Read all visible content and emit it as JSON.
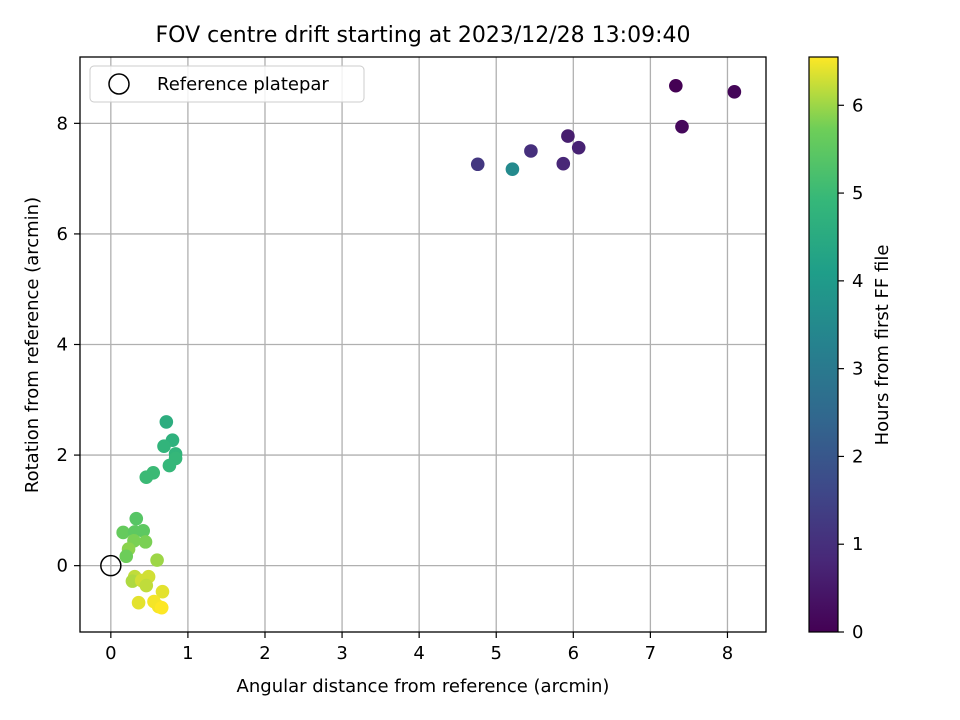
{
  "chart_data": {
    "type": "scatter",
    "title": "FOV centre drift starting at 2023/12/28 13:09:40",
    "xlabel": "Angular distance from reference (arcmin)",
    "ylabel": "Rotation from reference (arcmin)",
    "xlim": [
      -0.4,
      8.5
    ],
    "ylim": [
      -1.2,
      9.2
    ],
    "xticks": [
      0,
      1,
      2,
      3,
      4,
      5,
      6,
      7,
      8
    ],
    "yticks": [
      0,
      2,
      4,
      6,
      8
    ],
    "grid": true,
    "legend": {
      "placement": "top-left",
      "entries": [
        "Reference platepar"
      ]
    },
    "reference_point": {
      "x": 0,
      "y": 0,
      "name": "Reference platepar"
    },
    "colorbar": {
      "label": "Hours from first FF file",
      "colormap": "viridis",
      "range": [
        0,
        6.55
      ],
      "ticks": [
        0,
        1,
        2,
        3,
        4,
        5,
        6
      ]
    },
    "points": [
      {
        "x": 7.33,
        "y": 8.68,
        "c": 0.0
      },
      {
        "x": 8.09,
        "y": 8.57,
        "c": 0.1
      },
      {
        "x": 7.41,
        "y": 7.94,
        "c": 0.15
      },
      {
        "x": 5.93,
        "y": 7.77,
        "c": 0.6
      },
      {
        "x": 6.07,
        "y": 7.56,
        "c": 0.7
      },
      {
        "x": 5.45,
        "y": 7.5,
        "c": 1.0
      },
      {
        "x": 5.87,
        "y": 7.27,
        "c": 0.8
      },
      {
        "x": 4.76,
        "y": 7.26,
        "c": 1.2
      },
      {
        "x": 5.21,
        "y": 7.17,
        "c": 3.5
      },
      {
        "x": 0.72,
        "y": 2.6,
        "c": 4.6
      },
      {
        "x": 0.8,
        "y": 2.27,
        "c": 4.7
      },
      {
        "x": 0.69,
        "y": 2.16,
        "c": 4.8
      },
      {
        "x": 0.84,
        "y": 2.02,
        "c": 4.8
      },
      {
        "x": 0.84,
        "y": 1.94,
        "c": 4.9
      },
      {
        "x": 0.76,
        "y": 1.81,
        "c": 4.9
      },
      {
        "x": 0.55,
        "y": 1.68,
        "c": 5.0
      },
      {
        "x": 0.46,
        "y": 1.6,
        "c": 5.0
      },
      {
        "x": 0.33,
        "y": 0.85,
        "c": 5.4
      },
      {
        "x": 0.16,
        "y": 0.6,
        "c": 5.6
      },
      {
        "x": 0.31,
        "y": 0.61,
        "c": 5.5
      },
      {
        "x": 0.42,
        "y": 0.63,
        "c": 5.5
      },
      {
        "x": 0.45,
        "y": 0.43,
        "c": 5.8
      },
      {
        "x": 0.3,
        "y": 0.45,
        "c": 5.8
      },
      {
        "x": 0.23,
        "y": 0.3,
        "c": 5.9
      },
      {
        "x": 0.2,
        "y": 0.17,
        "c": 5.7
      },
      {
        "x": 0.6,
        "y": 0.1,
        "c": 6.0
      },
      {
        "x": 0.31,
        "y": -0.2,
        "c": 6.2
      },
      {
        "x": 0.49,
        "y": -0.2,
        "c": 6.3
      },
      {
        "x": 0.28,
        "y": -0.28,
        "c": 6.1
      },
      {
        "x": 0.4,
        "y": -0.27,
        "c": 6.3
      },
      {
        "x": 0.46,
        "y": -0.36,
        "c": 6.2
      },
      {
        "x": 0.67,
        "y": -0.47,
        "c": 6.4
      },
      {
        "x": 0.36,
        "y": -0.67,
        "c": 6.4
      },
      {
        "x": 0.56,
        "y": -0.65,
        "c": 6.5
      },
      {
        "x": 0.62,
        "y": -0.74,
        "c": 6.5
      },
      {
        "x": 0.66,
        "y": -0.76,
        "c": 6.55
      }
    ]
  }
}
